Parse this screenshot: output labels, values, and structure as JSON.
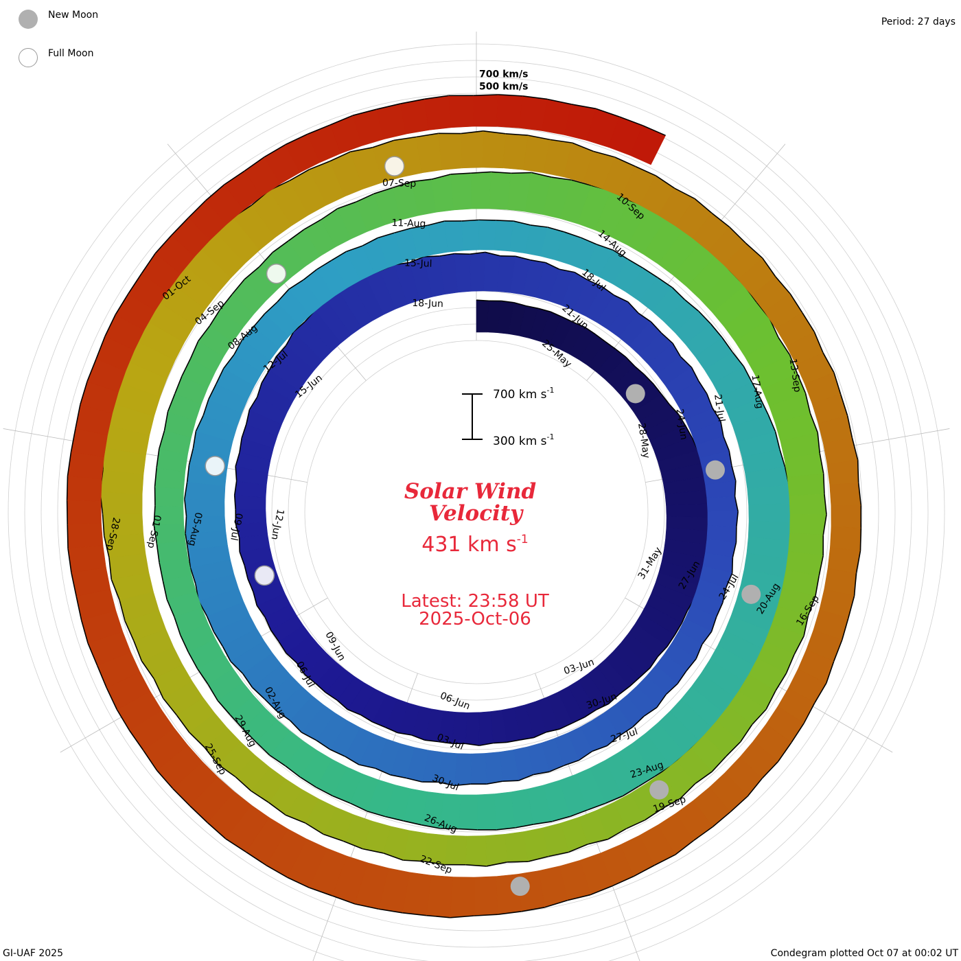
{
  "header": {
    "period_label": "Period: 27 days"
  },
  "legend": {
    "new_moon": "New Moon",
    "full_moon": "Full Moon",
    "new_moon_color": "#b0b0b0",
    "full_moon_color": "#ffffff"
  },
  "footer": {
    "credit": "GI-UAF 2025",
    "plotted": "Condegram plotted Oct 07 at 00:02 UT"
  },
  "center": {
    "title_line1": "Solar Wind",
    "title_line2": "Velocity",
    "current_value": "431 km s",
    "current_exp": "-1",
    "latest_line1": "Latest: 23:58 UT",
    "latest_line2": "2025-Oct-06",
    "accent_color": "#e8283a"
  },
  "scale_bar": {
    "top_label": "700 km s",
    "bottom_label": "300 km s",
    "exp": "-1"
  },
  "chart_data": {
    "type": "area",
    "title": "Solar Wind Velocity",
    "form": "spiral condegram",
    "period_days": 27,
    "start_date": "2025-05-23",
    "end_date": "2025-10-06",
    "velocity_unit": "km/s",
    "reference_lines": [
      "500 km/s",
      "700 km/s"
    ],
    "grid": true,
    "date_labels": [
      "25-May",
      "28-May",
      "31-May",
      "03-Jun",
      "06-Jun",
      "09-Jun",
      "12-Jun",
      "15-Jun",
      "18-Jun",
      "21-Jun",
      "24-Jun",
      "27-Jun",
      "30-Jun",
      "03-Jul",
      "06-Jul",
      "09-Jul",
      "12-Jul",
      "15-Jul",
      "18-Jul",
      "21-Jul",
      "24-Jul",
      "27-Jul",
      "30-Jul",
      "02-Aug",
      "05-Aug",
      "08-Aug",
      "11-Aug",
      "14-Aug",
      "17-Aug",
      "20-Aug",
      "23-Aug",
      "26-Aug",
      "29-Aug",
      "01-Sep",
      "04-Sep",
      "07-Sep",
      "10-Sep",
      "13-Sep",
      "16-Sep",
      "19-Sep",
      "22-Sep",
      "25-Sep",
      "28-Sep",
      "01-Oct"
    ],
    "series": [
      {
        "values": [
          420,
          405,
          395,
          380,
          430,
          560,
          620,
          600,
          560,
          520,
          480,
          450,
          430,
          410,
          400,
          390,
          380,
          375,
          370,
          390,
          430,
          470,
          540,
          600,
          560,
          520,
          480,
          450,
          420,
          400,
          390,
          380,
          370,
          360,
          355,
          350,
          360,
          380,
          400,
          420,
          440,
          460,
          520,
          560,
          540,
          510,
          470,
          440,
          420,
          400,
          390,
          380,
          370,
          380,
          420,
          470,
          540,
          610,
          650,
          620,
          580,
          540,
          500,
          470,
          440,
          420,
          400,
          390,
          380,
          370,
          365,
          360,
          370,
          390,
          420,
          450,
          500,
          560,
          600,
          580,
          540,
          500,
          470,
          440,
          420,
          400,
          390,
          380,
          375,
          370,
          365,
          380,
          410,
          450,
          500,
          580,
          640,
          620,
          580,
          540,
          500,
          470,
          450,
          430,
          410,
          400,
          390,
          380,
          385,
          395,
          410,
          430,
          460,
          500,
          560,
          600,
          580,
          540,
          500,
          470,
          450,
          430,
          420,
          410,
          405,
          400,
          410,
          420,
          431
        ]
      }
    ],
    "moon_phases": {
      "new": [
        "2025-05-27",
        "2025-06-25",
        "2025-07-24",
        "2025-08-23",
        "2025-09-21"
      ],
      "full": [
        "2025-06-11",
        "2025-07-10",
        "2025-08-09",
        "2025-09-07"
      ]
    }
  }
}
